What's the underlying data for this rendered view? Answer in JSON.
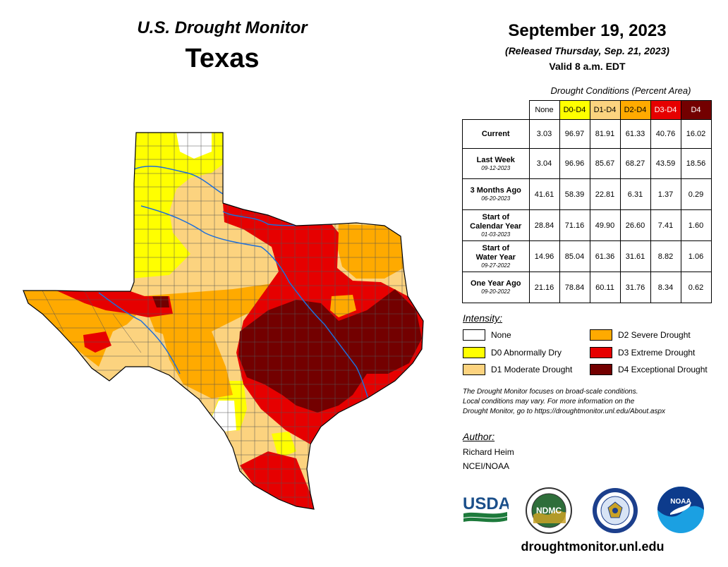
{
  "header": {
    "title": "U.S. Drought Monitor",
    "state": "Texas",
    "date": "September 19, 2023",
    "released": "(Released Thursday, Sep. 21, 2023)",
    "valid": "Valid 8 a.m. EDT"
  },
  "table": {
    "caption": "Drought Conditions (Percent Area)",
    "columns": [
      {
        "label": "None",
        "color": "#ffffff",
        "text_color": "#000000"
      },
      {
        "label": "D0-D4",
        "color": "#ffff00",
        "text_color": "#000000"
      },
      {
        "label": "D1-D4",
        "color": "#fcd37f",
        "text_color": "#000000"
      },
      {
        "label": "D2-D4",
        "color": "#ffaa00",
        "text_color": "#000000"
      },
      {
        "label": "D3-D4",
        "color": "#e60000",
        "text_color": "#ffffff"
      },
      {
        "label": "D4",
        "color": "#730000",
        "text_color": "#ffffff"
      }
    ],
    "rows": [
      {
        "label": "Current",
        "label2": "",
        "sub": "",
        "values": [
          "3.03",
          "96.97",
          "81.91",
          "61.33",
          "40.76",
          "16.02"
        ]
      },
      {
        "label": "Last Week",
        "label2": "",
        "sub": "09-12-2023",
        "values": [
          "3.04",
          "96.96",
          "85.67",
          "68.27",
          "43.59",
          "18.56"
        ]
      },
      {
        "label": "3 Months Ago",
        "label2": "",
        "sub": "06-20-2023",
        "values": [
          "41.61",
          "58.39",
          "22.81",
          "6.31",
          "1.37",
          "0.29"
        ]
      },
      {
        "label": "Start of",
        "label2": "Calendar Year",
        "sub": "01-03-2023",
        "values": [
          "28.84",
          "71.16",
          "49.90",
          "26.60",
          "7.41",
          "1.60"
        ]
      },
      {
        "label": "Start of",
        "label2": "Water Year",
        "sub": "09-27-2022",
        "values": [
          "14.96",
          "85.04",
          "61.36",
          "31.61",
          "8.82",
          "1.06"
        ]
      },
      {
        "label": "One Year Ago",
        "label2": "",
        "sub": "09-20-2022",
        "values": [
          "21.16",
          "78.84",
          "60.11",
          "31.76",
          "8.34",
          "0.62"
        ]
      }
    ]
  },
  "legend": {
    "heading": "Intensity:",
    "items": [
      {
        "label": "None",
        "color": "#ffffff"
      },
      {
        "label": "D0 Abnormally Dry",
        "color": "#ffff00"
      },
      {
        "label": "D1 Moderate Drought",
        "color": "#fcd37f"
      },
      {
        "label": "D2 Severe Drought",
        "color": "#ffaa00"
      },
      {
        "label": "D3 Extreme Drought",
        "color": "#e60000"
      },
      {
        "label": "D4 Exceptional Drought",
        "color": "#730000"
      }
    ]
  },
  "disclaimer": {
    "line1": "The Drought Monitor focuses on broad-scale conditions.",
    "line2": "Local conditions may vary. For more information on the",
    "line3": "Drought Monitor, go to https://droughtmonitor.unl.edu/About.aspx"
  },
  "author": {
    "heading": "Author:",
    "name": "Richard Heim",
    "org": "NCEI/NOAA"
  },
  "logos": {
    "usda": "USDA",
    "ndmc": "NDMC",
    "noaa": "NOAA"
  },
  "map_colors": {
    "river": "#1e6fd9",
    "county_line": "#555555",
    "outline": "#000000"
  },
  "footer": {
    "url": "droughtmonitor.unl.edu"
  }
}
